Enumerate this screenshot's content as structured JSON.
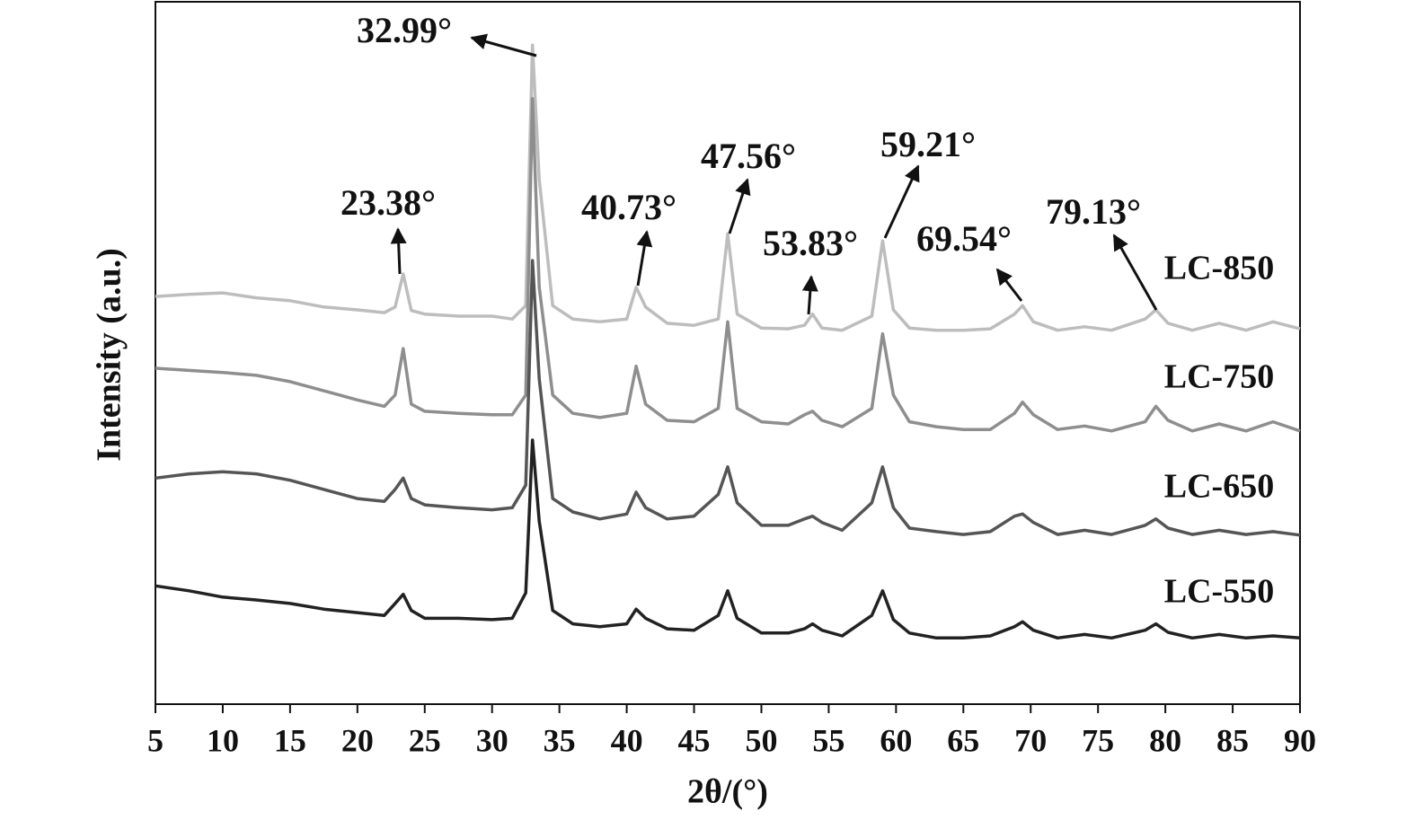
{
  "chart_data": {
    "type": "line",
    "xlabel": "2θ/(°)",
    "ylabel": "Intensity (a.u.)",
    "xlim": [
      5,
      90
    ],
    "xticks": [
      5,
      10,
      15,
      20,
      25,
      30,
      35,
      40,
      45,
      50,
      55,
      60,
      65,
      70,
      75,
      80,
      85,
      90
    ],
    "ylim": [
      0,
      100
    ],
    "annotations": [
      "32.99°",
      "23.38°",
      "40.73°",
      "47.56°",
      "53.83°",
      "59.21°",
      "69.54°",
      "79.13°"
    ],
    "x": [
      5,
      7.5,
      10,
      12.5,
      15,
      17.5,
      20,
      22,
      22.8,
      23.4,
      24,
      25,
      27.5,
      30,
      31.5,
      32.5,
      33,
      33.5,
      34.5,
      36,
      38,
      40,
      40.7,
      41.4,
      43,
      45,
      46.8,
      47.5,
      48.2,
      50,
      52,
      53.2,
      53.8,
      54.5,
      56,
      58.2,
      59,
      59.8,
      61,
      63,
      65,
      67,
      68.8,
      69.4,
      70.2,
      72,
      74,
      76,
      78.5,
      79.3,
      80.2,
      82,
      84,
      86,
      88,
      90
    ],
    "series": [
      {
        "name": "LC-850",
        "color": "#bdbdbd",
        "values": [
          57.9,
          58.2,
          58.4,
          57.7,
          57.3,
          56.4,
          56.0,
          55.6,
          56.4,
          61.1,
          55.9,
          55.4,
          55.1,
          55.1,
          54.7,
          56.6,
          93.6,
          74.5,
          56.6,
          54.7,
          54.3,
          54.7,
          59.2,
          56.4,
          54.1,
          53.8,
          54.7,
          66.8,
          55.4,
          53.4,
          53.3,
          53.8,
          55.4,
          53.4,
          53.1,
          55.1,
          65.8,
          56.0,
          53.4,
          53.1,
          53.1,
          53.3,
          55.4,
          56.6,
          54.3,
          53.1,
          53.6,
          53.1,
          54.7,
          56.0,
          54.1,
          53.1,
          54.1,
          53.1,
          54.3,
          53.3
        ]
      },
      {
        "name": "LC-750",
        "color": "#8e8e8e",
        "values": [
          47.7,
          47.4,
          47.1,
          46.7,
          45.8,
          44.5,
          43.2,
          42.3,
          43.9,
          50.5,
          42.6,
          41.6,
          41.3,
          41.1,
          41.1,
          43.9,
          86.0,
          59.2,
          43.9,
          41.3,
          40.7,
          41.3,
          48.0,
          42.6,
          40.3,
          40.1,
          42.0,
          54.3,
          42.0,
          40.1,
          39.8,
          41.1,
          41.6,
          40.3,
          39.4,
          42.0,
          52.6,
          43.9,
          40.1,
          39.4,
          39.0,
          39.0,
          41.3,
          42.9,
          41.1,
          39.0,
          39.5,
          38.8,
          40.1,
          42.3,
          40.3,
          38.8,
          39.8,
          38.8,
          40.1,
          38.8
        ]
      },
      {
        "name": "LC-650",
        "color": "#555555",
        "values": [
          32.1,
          32.7,
          33.0,
          32.7,
          31.8,
          30.5,
          29.2,
          28.8,
          30.5,
          32.1,
          29.2,
          28.3,
          27.9,
          27.6,
          27.9,
          31.1,
          63.0,
          46.2,
          29.2,
          27.3,
          26.3,
          27.0,
          30.1,
          27.9,
          26.3,
          26.7,
          29.8,
          33.7,
          28.6,
          25.4,
          25.4,
          26.3,
          26.7,
          25.8,
          24.7,
          28.6,
          33.7,
          27.9,
          25.0,
          24.5,
          24.1,
          24.5,
          26.7,
          27.0,
          25.8,
          24.1,
          24.7,
          24.1,
          25.4,
          26.3,
          25.0,
          24.1,
          24.7,
          24.1,
          24.5,
          24.0
        ]
      },
      {
        "name": "LC-550",
        "color": "#222222",
        "values": [
          16.8,
          16.1,
          15.2,
          14.8,
          14.3,
          13.5,
          13.0,
          12.6,
          14.3,
          15.6,
          13.3,
          12.2,
          12.2,
          12.0,
          12.2,
          15.8,
          37.5,
          26.0,
          13.3,
          11.4,
          11.0,
          11.4,
          13.5,
          12.2,
          10.7,
          10.5,
          12.6,
          16.1,
          12.2,
          10.1,
          10.1,
          10.7,
          11.4,
          10.5,
          9.7,
          12.6,
          16.1,
          12.0,
          10.1,
          9.4,
          9.4,
          9.7,
          11.0,
          11.7,
          10.5,
          9.4,
          9.9,
          9.4,
          10.5,
          11.4,
          10.2,
          9.4,
          9.9,
          9.4,
          9.7,
          9.4
        ]
      }
    ]
  }
}
